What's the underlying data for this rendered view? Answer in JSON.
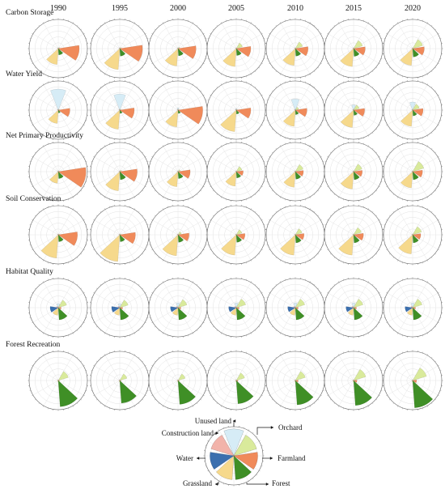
{
  "chart_data": {
    "type": "radial-bar-grid",
    "years": [
      "1990",
      "1995",
      "2000",
      "2005",
      "2010",
      "2015",
      "2020"
    ],
    "categories": [
      "Unused land",
      "Orchard",
      "Farmland",
      "Forest",
      "Grassland",
      "Water",
      "Construction land"
    ],
    "colors": {
      "Unused land": "#d6ecf6",
      "Orchard": "#d9ea9b",
      "Farmland": "#f08a5a",
      "Forest": "#3f8f26",
      "Grassland": "#f6d98c",
      "Water": "#3b6fae",
      "Construction land": "#f2b3aa"
    },
    "rows": [
      {
        "label": "Carbon Storage",
        "values": [
          [
            0.0,
            0.05,
            0.72,
            0.22,
            0.55,
            0.0,
            0.02
          ],
          [
            0.0,
            0.05,
            0.78,
            0.26,
            0.72,
            0.0,
            0.02
          ],
          [
            0.0,
            0.06,
            0.62,
            0.25,
            0.6,
            0.0,
            0.03
          ],
          [
            0.0,
            0.22,
            0.5,
            0.24,
            0.62,
            0.0,
            0.03
          ],
          [
            0.0,
            0.26,
            0.44,
            0.26,
            0.58,
            0.0,
            0.03
          ],
          [
            0.0,
            0.32,
            0.4,
            0.27,
            0.62,
            0.0,
            0.03
          ],
          [
            0.0,
            0.36,
            0.4,
            0.29,
            0.58,
            0.0,
            0.03
          ]
        ]
      },
      {
        "label": "Water Yield",
        "values": [
          [
            0.72,
            0.04,
            0.4,
            0.1,
            0.46,
            0.0,
            0.03
          ],
          [
            0.55,
            0.04,
            0.5,
            0.12,
            0.66,
            0.0,
            0.03
          ],
          [
            0.08,
            0.04,
            0.85,
            0.12,
            0.58,
            0.0,
            0.03
          ],
          [
            0.06,
            0.04,
            0.5,
            0.14,
            0.74,
            0.0,
            0.03
          ],
          [
            0.38,
            0.12,
            0.4,
            0.16,
            0.56,
            0.0,
            0.03
          ],
          [
            0.18,
            0.2,
            0.38,
            0.18,
            0.6,
            0.0,
            0.03
          ],
          [
            0.28,
            0.24,
            0.36,
            0.2,
            0.56,
            0.0,
            0.03
          ]
        ]
      },
      {
        "label": "Net Primary Productivity",
        "values": [
          [
            0.0,
            0.04,
            0.95,
            0.24,
            0.4,
            0.0,
            0.02
          ],
          [
            0.0,
            0.06,
            0.6,
            0.28,
            0.66,
            0.0,
            0.02
          ],
          [
            0.0,
            0.08,
            0.42,
            0.24,
            0.52,
            0.0,
            0.02
          ],
          [
            0.0,
            0.2,
            0.24,
            0.22,
            0.5,
            0.0,
            0.02
          ],
          [
            0.0,
            0.28,
            0.28,
            0.26,
            0.54,
            0.0,
            0.02
          ],
          [
            0.0,
            0.3,
            0.3,
            0.28,
            0.6,
            0.0,
            0.02
          ],
          [
            0.0,
            0.4,
            0.34,
            0.28,
            0.56,
            0.0,
            0.02
          ]
        ]
      },
      {
        "label": "Soil Conservation",
        "values": [
          [
            0.0,
            0.04,
            0.66,
            0.24,
            0.8,
            0.0,
            0.02
          ],
          [
            0.0,
            0.04,
            0.54,
            0.24,
            0.92,
            0.0,
            0.02
          ],
          [
            0.0,
            0.12,
            0.38,
            0.26,
            0.72,
            0.0,
            0.02
          ],
          [
            0.0,
            0.2,
            0.3,
            0.26,
            0.7,
            0.0,
            0.02
          ],
          [
            0.0,
            0.24,
            0.3,
            0.28,
            0.7,
            0.0,
            0.02
          ],
          [
            0.0,
            0.28,
            0.34,
            0.28,
            0.7,
            0.0,
            0.02
          ],
          [
            0.0,
            0.32,
            0.28,
            0.28,
            0.66,
            0.0,
            0.02
          ]
        ]
      },
      {
        "label": "Habitat Quality",
        "values": [
          [
            0.14,
            0.3,
            0.1,
            0.42,
            0.26,
            0.28,
            0.06
          ],
          [
            0.14,
            0.3,
            0.1,
            0.42,
            0.26,
            0.28,
            0.06
          ],
          [
            0.16,
            0.32,
            0.1,
            0.42,
            0.26,
            0.26,
            0.06
          ],
          [
            0.16,
            0.34,
            0.1,
            0.42,
            0.26,
            0.26,
            0.06
          ],
          [
            0.16,
            0.34,
            0.1,
            0.42,
            0.26,
            0.26,
            0.06
          ],
          [
            0.16,
            0.34,
            0.1,
            0.42,
            0.26,
            0.26,
            0.06
          ],
          [
            0.16,
            0.34,
            0.1,
            0.42,
            0.26,
            0.26,
            0.06
          ]
        ]
      },
      {
        "label": "Forest Recreation",
        "values": [
          [
            0.0,
            0.36,
            0.04,
            0.9,
            0.04,
            0.0,
            0.02
          ],
          [
            0.0,
            0.26,
            0.04,
            0.78,
            0.04,
            0.0,
            0.02
          ],
          [
            0.0,
            0.26,
            0.04,
            0.82,
            0.04,
            0.0,
            0.02
          ],
          [
            0.0,
            0.3,
            0.06,
            0.8,
            0.04,
            0.0,
            0.02
          ],
          [
            0.0,
            0.36,
            0.1,
            0.84,
            0.04,
            0.0,
            0.02
          ],
          [
            0.0,
            0.44,
            0.12,
            0.86,
            0.04,
            0.0,
            0.02
          ],
          [
            0.0,
            0.5,
            0.14,
            0.94,
            0.04,
            0.0,
            0.02
          ]
        ]
      }
    ],
    "legend": {
      "position": "bottom-center",
      "labels": [
        "Unused land",
        "Orchard",
        "Farmland",
        "Forest",
        "Grassland",
        "Water",
        "Construction land"
      ]
    }
  }
}
